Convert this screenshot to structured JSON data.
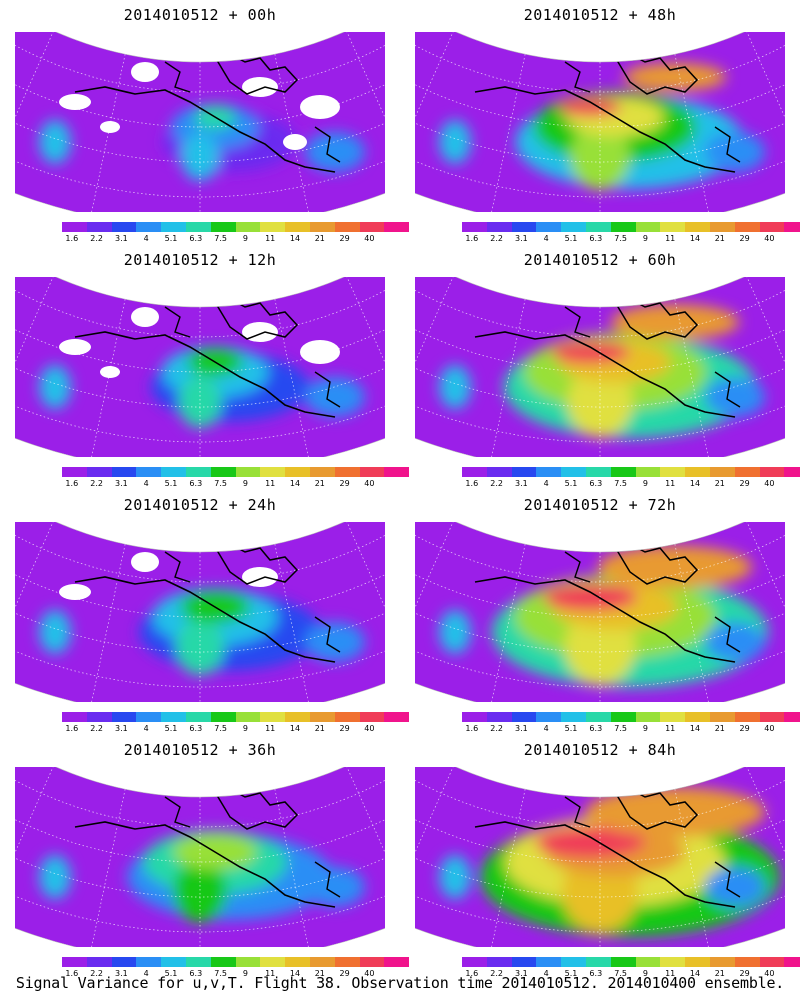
{
  "colorbar": {
    "colors": [
      "#9b1fe8",
      "#6a2cf0",
      "#2848f0",
      "#2a8ef5",
      "#22c0e8",
      "#28d8a8",
      "#18c818",
      "#98e038",
      "#e0e040",
      "#e8c028",
      "#e89a30",
      "#f07030",
      "#f03c58",
      "#f0148c"
    ],
    "labels": [
      "1.6",
      "2.2",
      "3.1",
      "4",
      "5.1",
      "6.3",
      "7.5",
      "9",
      "11",
      "14",
      "21",
      "29",
      "40"
    ]
  },
  "panels": [
    {
      "title": "2014010512 + 00h",
      "lead": 0
    },
    {
      "title": "2014010512 + 48h",
      "lead": 48
    },
    {
      "title": "2014010512 + 12h",
      "lead": 12
    },
    {
      "title": "2014010512 + 60h",
      "lead": 60
    },
    {
      "title": "2014010512 + 24h",
      "lead": 24
    },
    {
      "title": "2014010512 + 72h",
      "lead": 72
    },
    {
      "title": "2014010512 + 36h",
      "lead": 36
    },
    {
      "title": "2014010512 + 84h",
      "lead": 84
    }
  ],
  "caption": "Signal Variance for u,v,T. Flight 38. Observation time 2014010512. 2014010400 ensemble."
}
